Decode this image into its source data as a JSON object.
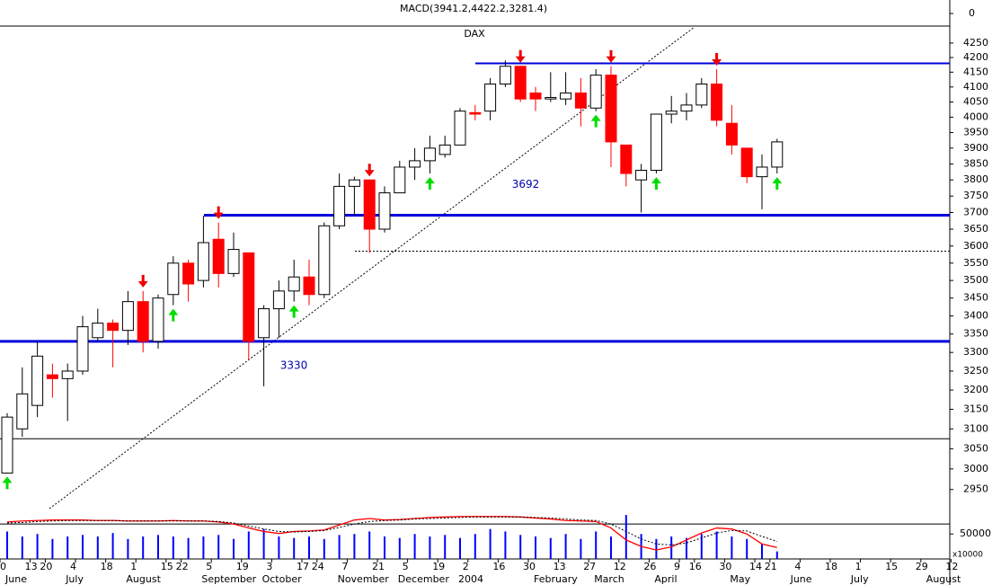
{
  "chart_data": [
    {
      "type": "line",
      "title": "MACD(3941.2,4422.2,3281.4)",
      "ylim": [
        -1,
        1
      ],
      "yticks": [
        0
      ]
    },
    {
      "type": "candlestick",
      "title": "DAX",
      "categories": [
        "0",
        null,
        "13",
        "20",
        null,
        "4",
        null,
        "18",
        null,
        "1",
        null,
        "15",
        "22",
        null,
        "5",
        null,
        "19",
        null,
        "3",
        null,
        "17",
        "24",
        null,
        "7",
        null,
        "21",
        null,
        "5",
        null,
        "19",
        null,
        "2",
        null,
        "16",
        null,
        "30",
        null,
        "13",
        null,
        "27",
        null,
        "12",
        null,
        "26",
        null,
        "9",
        "16",
        null,
        "30",
        null,
        "14",
        "21",
        null,
        "4",
        null,
        "18",
        null,
        "1",
        null,
        "15",
        null,
        "29",
        null,
        "12"
      ],
      "months": [
        "June",
        null,
        null,
        null,
        "July",
        null,
        null,
        null,
        "August",
        null,
        null,
        null,
        null,
        "September",
        null,
        null,
        null,
        "October",
        null,
        null,
        null,
        null,
        "November",
        null,
        null,
        null,
        "December",
        null,
        null,
        null,
        "2004",
        null,
        null,
        null,
        null,
        "February",
        null,
        null,
        null,
        "March",
        null,
        null,
        null,
        "April",
        null,
        null,
        null,
        null,
        "May",
        null,
        null,
        null,
        "June",
        null,
        null,
        null,
        "July",
        null,
        null,
        null,
        null,
        "August",
        null,
        null
      ],
      "open": [
        2990,
        3100,
        3160,
        3240,
        3230,
        3250,
        3340,
        3380,
        3360,
        3440,
        3330,
        3460,
        3550,
        3500,
        3620,
        3520,
        3580,
        3340,
        3420,
        3470,
        3510,
        3460,
        3660,
        3780,
        3800,
        3650,
        3760,
        3840,
        3860,
        3880,
        3910,
        4015,
        4020,
        4110,
        4170,
        4080,
        4060,
        4060,
        4080,
        4030,
        4140,
        3910,
        3800,
        3830,
        4010,
        4020,
        4040,
        4110,
        3980,
        3900,
        3810,
        3840,
        null,
        null,
        null,
        null,
        null,
        null,
        null,
        null,
        null,
        null,
        null,
        null
      ],
      "high": [
        3140,
        3260,
        3330,
        3270,
        3270,
        3400,
        3420,
        3390,
        3470,
        3470,
        3460,
        3570,
        3560,
        3690,
        3670,
        3640,
        3580,
        3430,
        3500,
        3560,
        3560,
        3670,
        3820,
        3810,
        3800,
        3780,
        3860,
        3900,
        3940,
        3940,
        4030,
        4040,
        4130,
        4190,
        4170,
        4100,
        4150,
        4150,
        4130,
        4160,
        4170,
        3910,
        3850,
        4010,
        4070,
        4080,
        4130,
        4160,
        4040,
        3900,
        3880,
        3930,
        null,
        null,
        null,
        null,
        null,
        null,
        null,
        null,
        null,
        null,
        null,
        null
      ],
      "low": [
        2990,
        3080,
        3130,
        3180,
        3120,
        3240,
        3330,
        3260,
        3320,
        3300,
        3310,
        3430,
        3440,
        3480,
        3480,
        3510,
        3280,
        3210,
        3340,
        3440,
        3430,
        3450,
        3650,
        3690,
        3580,
        3640,
        3760,
        3800,
        3820,
        3870,
        3910,
        3990,
        3990,
        4100,
        4050,
        4020,
        4050,
        4040,
        3970,
        4020,
        3840,
        3780,
        3700,
        3820,
        3980,
        3990,
        4030,
        3970,
        3880,
        3790,
        3710,
        3820,
        null,
        null,
        null,
        null,
        null,
        null,
        null,
        null,
        null,
        null,
        null,
        null
      ],
      "close": [
        3130,
        3190,
        3290,
        3230,
        3250,
        3370,
        3380,
        3360,
        3440,
        3330,
        3450,
        3550,
        3490,
        3610,
        3520,
        3590,
        3330,
        3420,
        3470,
        3510,
        3460,
        3660,
        3780,
        3800,
        3650,
        3760,
        3840,
        3860,
        3900,
        3910,
        4020,
        4010,
        4110,
        4170,
        4060,
        4060,
        4065,
        4080,
        4030,
        4140,
        3920,
        3820,
        3830,
        4010,
        4020,
        4040,
        4110,
        3990,
        3910,
        3810,
        3840,
        3920,
        null,
        null,
        null,
        null,
        null,
        null,
        null,
        null,
        null,
        null,
        null,
        null
      ],
      "colors": {
        "up": "#ffffff",
        "down": "#ff0000"
      },
      "log_scale": true,
      "ylim": [
        2900,
        4300
      ],
      "yticks": [
        2950,
        3000,
        3050,
        3100,
        3150,
        3200,
        3250,
        3300,
        3350,
        3400,
        3450,
        3500,
        3550,
        3600,
        3650,
        3700,
        3750,
        3800,
        3850,
        3900,
        3950,
        4000,
        4050,
        4100,
        4150,
        4200,
        4250
      ],
      "levels": [
        3330,
        3692,
        4180
      ],
      "level_color": "#0000dd",
      "reference_lines": [
        3585,
        3075
      ]
    },
    {
      "type": "bar",
      "color": "#0000ff",
      "ylim": [
        0,
        90000
      ],
      "yticks": [
        50000
      ],
      "multiplier": "x10000",
      "values": [
        55000,
        45000,
        50000,
        40000,
        45000,
        48000,
        45000,
        52000,
        40000,
        45000,
        48000,
        45000,
        42000,
        45000,
        48000,
        40000,
        55000,
        60000,
        45000,
        42000,
        45000,
        40000,
        48000,
        50000,
        55000,
        45000,
        42000,
        50000,
        45000,
        48000,
        42000,
        50000,
        60000,
        55000,
        48000,
        45000,
        42000,
        50000,
        40000,
        55000,
        45000,
        88000,
        50000,
        40000,
        45000,
        42000,
        50000,
        55000,
        45000,
        40000,
        30000,
        15000,
        null,
        null,
        null,
        null,
        null,
        null,
        null,
        null,
        null,
        null,
        null,
        null
      ],
      "lines": [
        {
          "color": "#ff0000",
          "values": [
            74000,
            76000,
            77000,
            78000,
            78000,
            78000,
            77000,
            77000,
            76000,
            76000,
            76000,
            77000,
            76000,
            76000,
            74000,
            70000,
            62000,
            55000,
            51000,
            55000,
            56000,
            58000,
            68000,
            78000,
            81000,
            78000,
            79000,
            81000,
            83000,
            84000,
            85000,
            85000,
            85000,
            85000,
            84000,
            82000,
            80000,
            77000,
            76000,
            75000,
            62000,
            38000,
            25000,
            18000,
            24000,
            38000,
            52000,
            62000,
            60000,
            50000,
            30000,
            23000,
            null,
            null,
            null,
            null,
            null,
            null,
            null,
            null,
            null,
            null,
            null,
            null
          ]
        },
        {
          "color": "#000000",
          "dashed": true,
          "values": [
            72000,
            73000,
            75000,
            76000,
            77000,
            77000,
            77000,
            77000,
            76000,
            76000,
            76000,
            76000,
            76000,
            76000,
            75000,
            72000,
            66000,
            60000,
            55000,
            54000,
            55000,
            57000,
            63000,
            70000,
            75000,
            77000,
            78000,
            80000,
            81000,
            82000,
            83000,
            84000,
            84000,
            84000,
            84000,
            83000,
            82000,
            80000,
            78000,
            77000,
            70000,
            55000,
            40000,
            30000,
            28000,
            32000,
            42000,
            52000,
            57000,
            56000,
            45000,
            35000,
            null,
            null,
            null,
            null,
            null,
            null,
            null,
            null,
            null,
            null,
            null,
            null
          ]
        }
      ],
      "reference_lines": [
        70000
      ]
    }
  ]
}
